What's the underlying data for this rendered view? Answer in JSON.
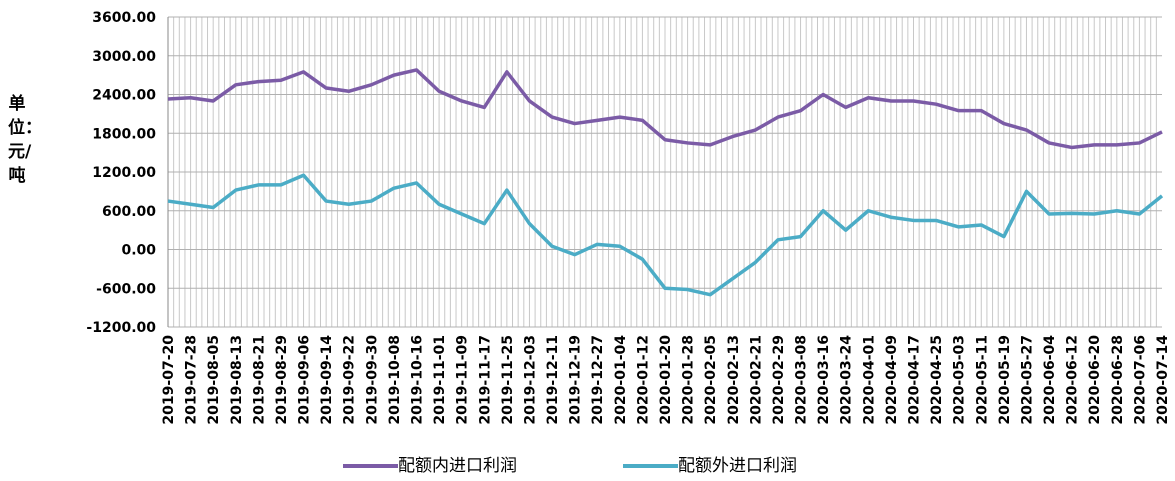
{
  "chart_data": {
    "type": "line",
    "y_label": "单位：元/吨",
    "categories": [
      "2019-07-20",
      "2019-07-28",
      "2019-08-05",
      "2019-08-13",
      "2019-08-21",
      "2019-08-29",
      "2019-09-06",
      "2019-09-14",
      "2019-09-22",
      "2019-09-30",
      "2019-10-08",
      "2019-10-16",
      "2019-11-01",
      "2019-11-09",
      "2019-11-17",
      "2019-11-25",
      "2019-12-03",
      "2019-12-11",
      "2019-12-19",
      "2019-12-27",
      "2020-01-04",
      "2020-01-12",
      "2020-01-20",
      "2020-01-28",
      "2020-02-05",
      "2020-02-13",
      "2020-02-21",
      "2020-02-29",
      "2020-03-08",
      "2020-03-16",
      "2020-03-24",
      "2020-04-01",
      "2020-04-09",
      "2020-04-17",
      "2020-04-25",
      "2020-05-03",
      "2020-05-11",
      "2020-05-19",
      "2020-05-27",
      "2020-06-04",
      "2020-06-12",
      "2020-06-20",
      "2020-06-28",
      "2020-07-06",
      "2020-07-14"
    ],
    "series": [
      {
        "name": "配额内进口利润",
        "color": "#7b5ba6",
        "values": [
          2330,
          2350,
          2300,
          2550,
          2600,
          2620,
          2750,
          2500,
          2450,
          2550,
          2700,
          2780,
          2450,
          2300,
          2200,
          2750,
          2300,
          2050,
          1950,
          2000,
          2050,
          2000,
          1700,
          1650,
          1620,
          1750,
          1850,
          2050,
          2150,
          2400,
          2200,
          2350,
          2300,
          2300,
          2250,
          2150,
          2150,
          1950,
          1850,
          1650,
          1580,
          1620,
          1620,
          1650,
          1820
        ]
      },
      {
        "name": "配额外进口利润",
        "color": "#4bacc6",
        "values": [
          750,
          700,
          650,
          920,
          1000,
          1000,
          1150,
          750,
          700,
          750,
          950,
          1030,
          700,
          550,
          400,
          920,
          400,
          50,
          -80,
          80,
          50,
          -150,
          -600,
          -620,
          -700,
          -450,
          -200,
          150,
          200,
          600,
          300,
          600,
          500,
          450,
          450,
          350,
          380,
          200,
          900,
          550,
          560,
          550,
          600,
          550,
          830
        ]
      }
    ],
    "ylim": [
      -1200,
      3600
    ],
    "yticks": [
      {
        "value": -1200,
        "label": "-1200.00"
      },
      {
        "value": -600,
        "label": "-600.00"
      },
      {
        "value": 0,
        "label": "0.00"
      },
      {
        "value": 600,
        "label": "600.00"
      },
      {
        "value": 1200,
        "label": "1200.00"
      },
      {
        "value": 1800,
        "label": "1800.00"
      },
      {
        "value": 2400,
        "label": "2400.00"
      },
      {
        "value": 3000,
        "label": "3000.00"
      },
      {
        "value": 3600,
        "label": "3600.00"
      }
    ],
    "grid": true,
    "legend": "bottom"
  }
}
